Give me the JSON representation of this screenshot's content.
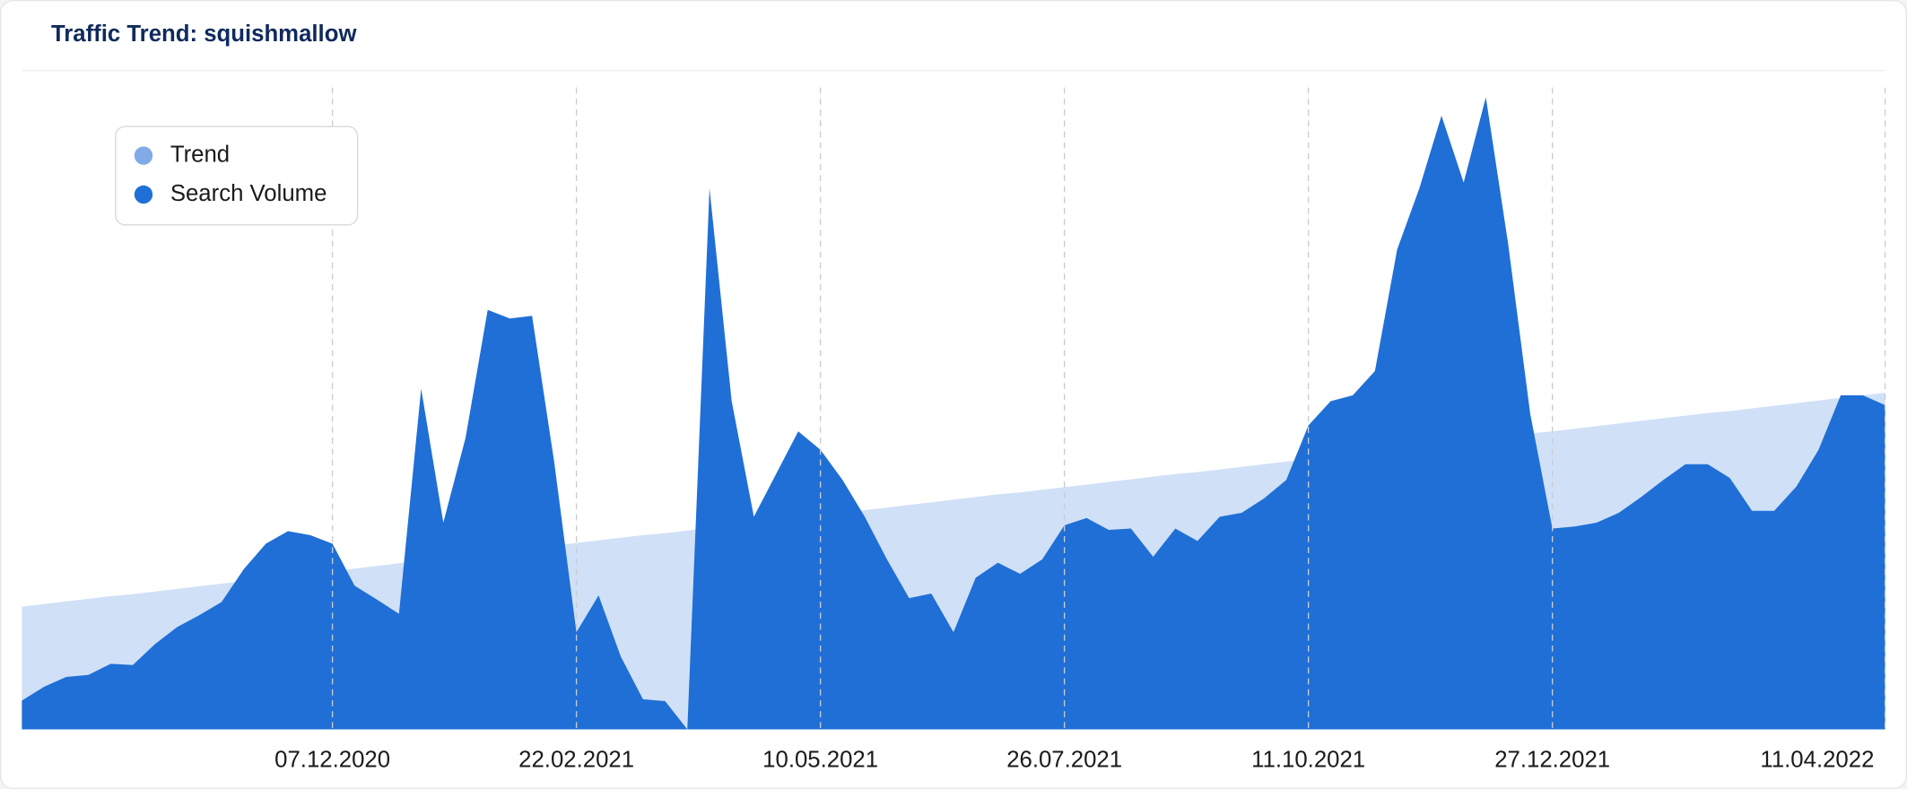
{
  "chart_data": {
    "type": "area",
    "title": "Traffic Trend: squishmallow",
    "x": [
      "31.08.2020",
      "07.09.2020",
      "14.09.2020",
      "21.09.2020",
      "28.09.2020",
      "05.10.2020",
      "12.10.2020",
      "19.10.2020",
      "26.10.2020",
      "02.11.2020",
      "09.11.2020",
      "16.11.2020",
      "23.11.2020",
      "30.11.2020",
      "07.12.2020",
      "14.12.2020",
      "21.12.2020",
      "28.12.2020",
      "04.01.2021",
      "11.01.2021",
      "18.01.2021",
      "25.01.2021",
      "01.02.2021",
      "08.02.2021",
      "15.02.2021",
      "22.02.2021",
      "01.03.2021",
      "08.03.2021",
      "15.03.2021",
      "22.03.2021",
      "29.03.2021",
      "05.04.2021",
      "12.04.2021",
      "19.04.2021",
      "26.04.2021",
      "03.05.2021",
      "10.05.2021",
      "17.05.2021",
      "24.05.2021",
      "31.05.2021",
      "07.06.2021",
      "14.06.2021",
      "21.06.2021",
      "28.06.2021",
      "05.07.2021",
      "12.07.2021",
      "19.07.2021",
      "26.07.2021",
      "02.08.2021",
      "09.08.2021",
      "16.08.2021",
      "23.08.2021",
      "30.08.2021",
      "06.09.2021",
      "13.09.2021",
      "20.09.2021",
      "27.09.2021",
      "04.10.2021",
      "11.10.2021",
      "18.10.2021",
      "25.10.2021",
      "01.11.2021",
      "08.11.2021",
      "15.11.2021",
      "22.11.2021",
      "29.11.2021",
      "06.12.2021",
      "13.12.2021",
      "20.12.2021",
      "27.12.2021",
      "03.01.2022",
      "10.01.2022",
      "17.01.2022",
      "24.01.2022",
      "31.01.2022",
      "07.02.2022",
      "14.02.2022",
      "21.02.2022",
      "28.02.2022",
      "07.03.2022",
      "14.03.2022",
      "21.03.2022",
      "28.03.2022",
      "04.04.2022",
      "11.04.2022"
    ],
    "xticks": [
      "07.12.2020",
      "22.02.2021",
      "10.05.2021",
      "26.07.2021",
      "11.10.2021",
      "27.12.2021",
      "11.04.2022"
    ],
    "ylim": [
      0,
      100
    ],
    "grid": true,
    "series": [
      {
        "name": "Trend",
        "color": "#80aae8",
        "values": [
          18.7,
          19.1,
          19.5,
          19.9,
          20.3,
          20.6,
          21.0,
          21.4,
          21.8,
          22.2,
          22.6,
          23.0,
          23.4,
          23.7,
          24.1,
          24.5,
          24.9,
          25.3,
          25.7,
          26.1,
          26.5,
          26.8,
          27.2,
          27.6,
          28.0,
          28.4,
          28.8,
          29.2,
          29.6,
          29.9,
          30.3,
          30.7,
          31.1,
          31.5,
          31.9,
          32.3,
          32.7,
          33.0,
          33.4,
          33.8,
          34.2,
          34.6,
          35.0,
          35.4,
          35.8,
          36.1,
          36.5,
          36.9,
          37.3,
          37.7,
          38.1,
          38.5,
          38.9,
          39.2,
          39.6,
          40.0,
          40.4,
          40.8,
          41.2,
          41.6,
          42.0,
          42.3,
          42.7,
          43.1,
          43.5,
          43.9,
          44.3,
          44.7,
          45.1,
          45.4,
          45.8,
          46.2,
          46.6,
          47.0,
          47.4,
          47.8,
          48.2,
          48.5,
          48.9,
          49.3,
          49.7,
          50.1,
          50.5,
          50.9,
          51.3
        ]
      },
      {
        "name": "Search Volume",
        "color": "#1f6fd6",
        "values": [
          4.4,
          6.5,
          8.0,
          8.3,
          10,
          9.8,
          13,
          15.6,
          17.4,
          19.4,
          24.4,
          28.3,
          30.2,
          29.6,
          28.3,
          21.9,
          19.8,
          17.6,
          51.9,
          31.5,
          44.4,
          63.9,
          62.6,
          63,
          40.7,
          14.8,
          20.4,
          11.1,
          4.6,
          4.3,
          0,
          82.4,
          50,
          32.4,
          38.9,
          45.4,
          42.6,
          38,
          32.4,
          25.9,
          20,
          20.7,
          14.8,
          23.1,
          25.4,
          23.7,
          25.9,
          31.1,
          32.2,
          30.4,
          30.6,
          26.3,
          30.6,
          28.7,
          32.4,
          33,
          35.2,
          38,
          46.3,
          50,
          50.9,
          54.6,
          73.1,
          82.4,
          93.5,
          83.3,
          96.3,
          74.1,
          48.1,
          30.6,
          30.9,
          31.5,
          33,
          35.4,
          38,
          40.4,
          40.4,
          38.3,
          33.3,
          33.3,
          37,
          42.6,
          50.9,
          50.9,
          49.4
        ]
      }
    ]
  }
}
